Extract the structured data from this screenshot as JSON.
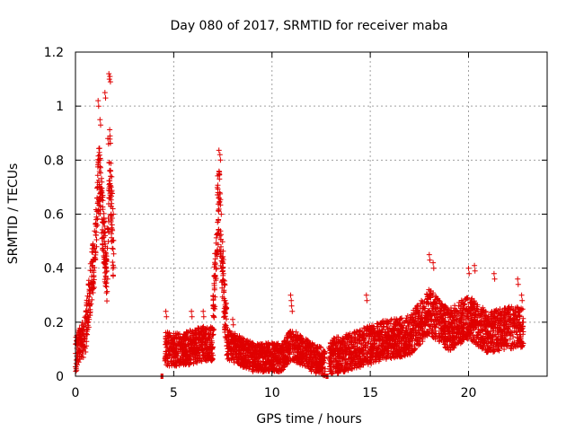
{
  "chart_data": {
    "type": "scatter",
    "title": "Day 080 of 2017, SRMTID for receiver maba",
    "xlabel": "GPS time / hours",
    "ylabel": "SRMTID / TECUs",
    "xlim": [
      0,
      24
    ],
    "ylim": [
      0,
      1.2
    ],
    "xticks": [
      0,
      5,
      10,
      15,
      20
    ],
    "xtick_labels": [
      "0",
      "5",
      "10",
      "15",
      "20"
    ],
    "yticks": [
      0,
      0.2,
      0.4,
      0.6,
      0.8,
      1.0,
      1.2
    ],
    "ytick_labels": [
      "0",
      "0.2",
      "0.4",
      "0.6",
      "0.8",
      "1",
      "1.2"
    ],
    "grid": true,
    "marker": "+",
    "color": "#e00000",
    "series": [
      {
        "name": "SRMTID",
        "segments": [
          {
            "x_start": 0.0,
            "x_end": 1.95,
            "base": 0.12,
            "spread": 0.1,
            "envelope": [
              [
                0,
                0.08
              ],
              [
                0.5,
                0.15
              ],
              [
                0.8,
                0.35
              ],
              [
                1.0,
                0.45
              ],
              [
                1.2,
                0.75
              ],
              [
                1.4,
                0.55
              ],
              [
                1.6,
                0.35
              ],
              [
                1.75,
                0.8
              ],
              [
                1.95,
                0.4
              ]
            ],
            "extremes": [
              [
                1.15,
                1.02
              ],
              [
                1.25,
                0.95
              ],
              [
                1.5,
                1.05
              ],
              [
                1.7,
                1.12
              ],
              [
                1.75,
                1.11
              ],
              [
                1.65,
                0.88
              ],
              [
                1.1,
                0.66
              ],
              [
                1.9,
                0.62
              ]
            ]
          },
          {
            "x_start": 4.35,
            "x_end": 4.45,
            "base": 0.0,
            "spread": 0.0,
            "envelope": [
              [
                4.4,
                0.0
              ]
            ],
            "extremes": []
          },
          {
            "x_start": 4.55,
            "x_end": 7.0,
            "base": 0.09,
            "spread": 0.09,
            "envelope": [
              [
                4.6,
                0.1
              ],
              [
                5.5,
                0.1
              ],
              [
                6.5,
                0.12
              ],
              [
                7.0,
                0.12
              ]
            ],
            "extremes": [
              [
                4.6,
                0.24
              ],
              [
                5.9,
                0.24
              ],
              [
                6.5,
                0.24
              ]
            ]
          },
          {
            "x_start": 7.0,
            "x_end": 7.7,
            "base": 0.2,
            "spread": 0.12,
            "envelope": [
              [
                7.0,
                0.2
              ],
              [
                7.2,
                0.55
              ],
              [
                7.3,
                0.7
              ],
              [
                7.4,
                0.5
              ],
              [
                7.6,
                0.25
              ],
              [
                7.7,
                0.15
              ]
            ],
            "extremes": [
              [
                7.35,
                0.82
              ],
              [
                7.3,
                0.75
              ],
              [
                7.25,
                0.68
              ],
              [
                7.5,
                0.4
              ]
            ]
          },
          {
            "x_start": 7.7,
            "x_end": 12.7,
            "base": 0.07,
            "spread": 0.08,
            "envelope": [
              [
                7.7,
                0.12
              ],
              [
                9.0,
                0.07
              ],
              [
                10.5,
                0.07
              ],
              [
                11.0,
                0.12
              ],
              [
                12.0,
                0.07
              ],
              [
                12.7,
                0.05
              ]
            ],
            "extremes": [
              [
                10.95,
                0.3
              ],
              [
                11.0,
                0.26
              ],
              [
                8.0,
                0.21
              ]
            ]
          },
          {
            "x_start": 12.75,
            "x_end": 12.85,
            "base": 0.0,
            "spread": 0.0,
            "envelope": [
              [
                12.8,
                0.0
              ]
            ],
            "extremes": []
          },
          {
            "x_start": 12.9,
            "x_end": 22.8,
            "base": 0.14,
            "spread": 0.1,
            "envelope": [
              [
                12.9,
                0.07
              ],
              [
                14.0,
                0.09
              ],
              [
                15.5,
                0.13
              ],
              [
                17.0,
                0.15
              ],
              [
                18.0,
                0.24
              ],
              [
                19.0,
                0.17
              ],
              [
                20.0,
                0.22
              ],
              [
                21.0,
                0.16
              ],
              [
                22.0,
                0.18
              ],
              [
                22.8,
                0.18
              ]
            ],
            "extremes": [
              [
                14.8,
                0.3
              ],
              [
                18.0,
                0.45
              ],
              [
                18.2,
                0.42
              ],
              [
                20.0,
                0.4
              ],
              [
                20.3,
                0.41
              ],
              [
                21.3,
                0.38
              ],
              [
                22.5,
                0.36
              ],
              [
                22.7,
                0.3
              ]
            ]
          }
        ]
      }
    ]
  }
}
